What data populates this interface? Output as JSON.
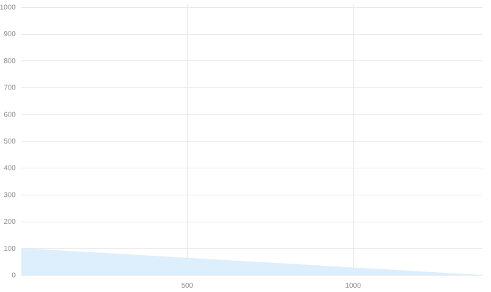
{
  "chart_data": {
    "type": "area",
    "title": "",
    "xlabel": "",
    "ylabel": "",
    "xlim": [
      0,
      1390
    ],
    "ylim": [
      0,
      1000
    ],
    "x_ticks": [
      500,
      1000
    ],
    "x_tick_labels": [
      "500",
      "1000"
    ],
    "y_ticks": [
      0,
      100,
      200,
      300,
      400,
      500,
      600,
      700,
      800,
      900,
      1000
    ],
    "y_tick_labels": [
      "0",
      "100",
      "200",
      "300",
      "400",
      "500",
      "600",
      "700",
      "800",
      "900",
      "1000"
    ],
    "grid": true,
    "legend": "none",
    "series": [
      {
        "name": "",
        "x": [
          0,
          1390
        ],
        "values": [
          100,
          0
        ]
      }
    ],
    "colors": {
      "area_fill": "#ddeefc",
      "grid_line": "#e9e9e9",
      "tick_text": "#8a8a8a"
    }
  }
}
